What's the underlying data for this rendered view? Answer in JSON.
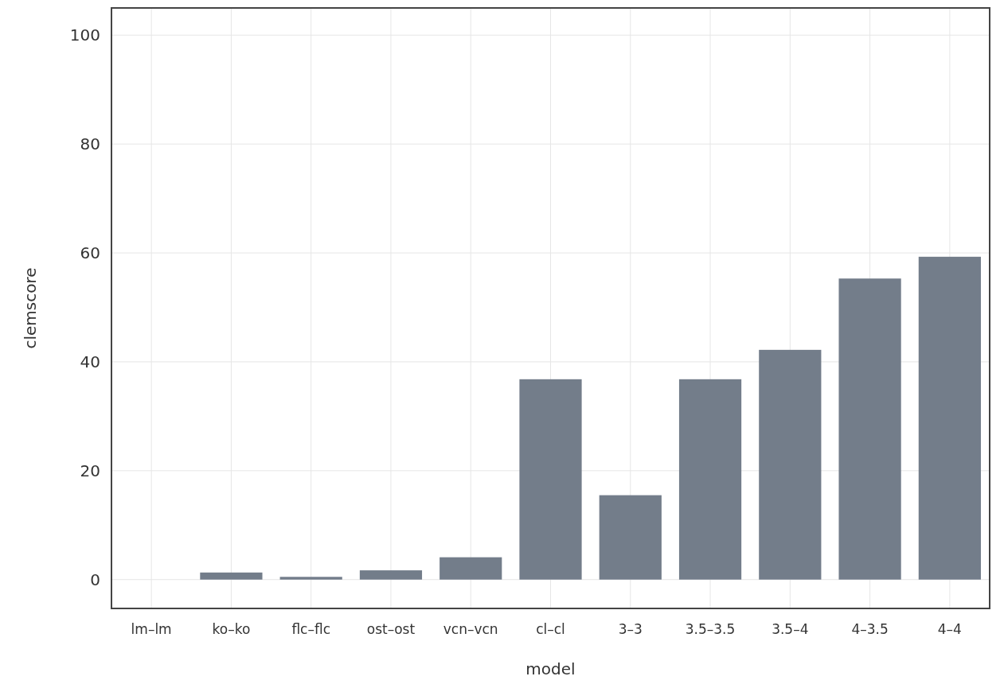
{
  "chart_data": {
    "type": "bar",
    "xlabel": "model",
    "ylabel": "clemscore",
    "categories": [
      "lm–lm",
      "ko–ko",
      "flc–flc",
      "ost–ost",
      "vcn–vcn",
      "cl–cl",
      "3–3",
      "3.5–3.5",
      "3.5–4",
      "4–3.5",
      "4–4"
    ],
    "values": [
      0,
      1.3,
      0.5,
      1.7,
      4.1,
      36.8,
      15.5,
      36.8,
      42.2,
      55.3,
      59.3
    ],
    "color": "#737d8a",
    "ylim": [
      -5.3,
      105
    ],
    "yticks": [
      0,
      20,
      40,
      60,
      80,
      100
    ],
    "grid": true
  }
}
